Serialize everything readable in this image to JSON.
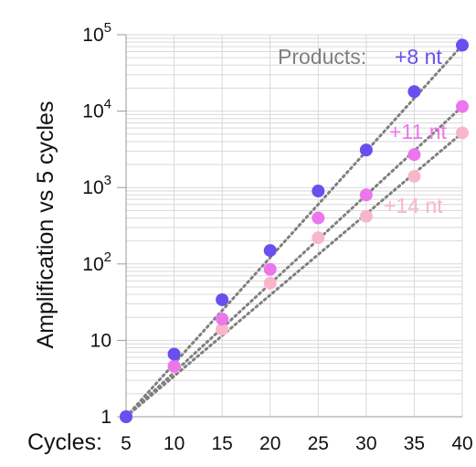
{
  "chart_data": {
    "type": "scatter",
    "title": "",
    "xlabel": "Cycles:",
    "ylabel": "Amplification vs 5 cycles",
    "x": [
      5,
      10,
      15,
      20,
      25,
      30,
      35,
      40
    ],
    "xlim": [
      5,
      40
    ],
    "ylim": [
      1,
      100000
    ],
    "yscale": "log",
    "grid": true,
    "x_tick_labels": [
      "5",
      "10",
      "15",
      "20",
      "25",
      "30",
      "35",
      "40"
    ],
    "y_ticks": [
      {
        "value": 1,
        "base": "1",
        "exp": ""
      },
      {
        "value": 10,
        "base": "10",
        "exp": ""
      },
      {
        "value": 100,
        "base": "10",
        "exp": "2"
      },
      {
        "value": 1000,
        "base": "10",
        "exp": "3"
      },
      {
        "value": 10000,
        "base": "10",
        "exp": "4"
      },
      {
        "value": 100000,
        "base": "10",
        "exp": "5"
      }
    ],
    "legend_prefix": "Products:",
    "series": [
      {
        "name": "+8 nt",
        "color": "#6a4ff0",
        "values": [
          1,
          6.6,
          34,
          150,
          900,
          3100,
          18000,
          73000
        ],
        "fit_end": 73000
      },
      {
        "name": "+11 nt",
        "color": "#ec76ec",
        "values": [
          1,
          4.6,
          19,
          85,
          400,
          800,
          2700,
          11500
        ],
        "fit_end": 11500
      },
      {
        "name": "+14 nt",
        "color": "#f8b7c9",
        "values": [
          1,
          4.5,
          14,
          56,
          220,
          420,
          1400,
          5200
        ],
        "fit_end": 5200
      }
    ]
  }
}
